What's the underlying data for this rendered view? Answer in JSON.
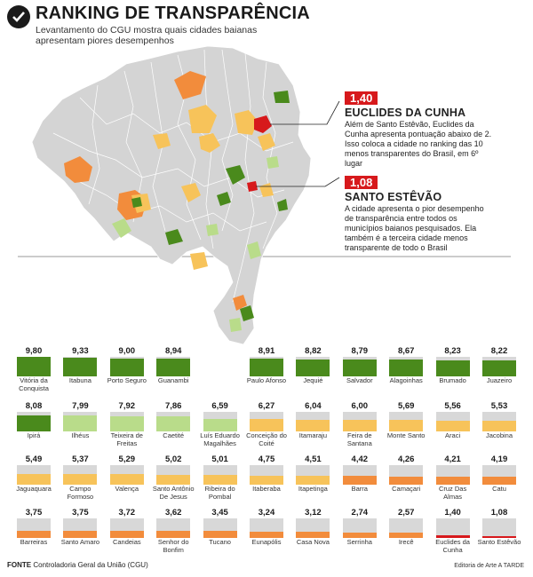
{
  "header": {
    "icon": "checkmark-icon",
    "title": "RANKING DE TRANSPARÊNCIA",
    "subtitle": "Levantamento do CGU mostra quais cidades baianas apresentam piores desempenhos"
  },
  "map": {
    "region": "Bahia",
    "callouts": [
      {
        "value": "1,40",
        "city": "EUCLIDES DA CUNHA",
        "text": "Além de Santo Estêvão, Euclides da Cunha apresenta pontuação abaixo de 2. Isso coloca a cidade no ranking das 10 menos transparentes do Brasil, em 6º lugar"
      },
      {
        "value": "1,08",
        "city": "SANTO ESTÊVÃO",
        "text": "A cidade apresenta o pior desempenho de transparência entre todos os municípios baianos pesquisados. Ela também é a terceira cidade menos transparente de todo o Brasil"
      }
    ]
  },
  "ranking": [
    {
      "value": "9,80",
      "name": "Vitória da Conquista",
      "score": 9.8
    },
    {
      "value": "9,33",
      "name": "Itabuna",
      "score": 9.33
    },
    {
      "value": "9,00",
      "name": "Porto Seguro",
      "score": 9.0
    },
    {
      "value": "8,94",
      "name": "Guanambi",
      "score": 8.94
    },
    {
      "value": "8,91",
      "name": "Paulo Afonso",
      "score": 8.91
    },
    {
      "value": "8,82",
      "name": "Jequié",
      "score": 8.82
    },
    {
      "value": "8,79",
      "name": "Salvador",
      "score": 8.79
    },
    {
      "value": "8,67",
      "name": "Alagoinhas",
      "score": 8.67
    },
    {
      "value": "8,23",
      "name": "Brumado",
      "score": 8.23
    },
    {
      "value": "8,22",
      "name": "Juazeiro",
      "score": 8.22
    },
    {
      "value": "8,08",
      "name": "Ipirá",
      "score": 8.08
    },
    {
      "value": "7,99",
      "name": "Ilhéus",
      "score": 7.99
    },
    {
      "value": "7,92",
      "name": "Teixeira de Freitas",
      "score": 7.92
    },
    {
      "value": "7,86",
      "name": "Caetité",
      "score": 7.86
    },
    {
      "value": "6,59",
      "name": "Luís Eduardo Magalhães",
      "score": 6.59
    },
    {
      "value": "6,27",
      "name": "Conceição do Coité",
      "score": 6.27
    },
    {
      "value": "6,04",
      "name": "Itamaraju",
      "score": 6.04
    },
    {
      "value": "6,00",
      "name": "Feira de Santana",
      "score": 6.0
    },
    {
      "value": "5,69",
      "name": "Monte Santo",
      "score": 5.69
    },
    {
      "value": "5,56",
      "name": "Araci",
      "score": 5.56
    },
    {
      "value": "5,53",
      "name": "Jacobina",
      "score": 5.53
    },
    {
      "value": "5,49",
      "name": "Jaguaquara",
      "score": 5.49
    },
    {
      "value": "5,37",
      "name": "Campo Formoso",
      "score": 5.37
    },
    {
      "value": "5,29",
      "name": "Valença",
      "score": 5.29
    },
    {
      "value": "5,02",
      "name": "Santo Antônio De Jesus",
      "score": 5.02
    },
    {
      "value": "5,01",
      "name": "Ribeira do Pombal",
      "score": 5.01
    },
    {
      "value": "4,75",
      "name": "Itaberaba",
      "score": 4.75
    },
    {
      "value": "4,51",
      "name": "Itapetinga",
      "score": 4.51
    },
    {
      "value": "4,42",
      "name": "Barra",
      "score": 4.42
    },
    {
      "value": "4,26",
      "name": "Camaçari",
      "score": 4.26
    },
    {
      "value": "4,21",
      "name": "Cruz Das Almas",
      "score": 4.21
    },
    {
      "value": "4,19",
      "name": "Catu",
      "score": 4.19
    },
    {
      "value": "3,75",
      "name": "Barreiras",
      "score": 3.75
    },
    {
      "value": "3,75",
      "name": "Santo Amaro",
      "score": 3.75
    },
    {
      "value": "3,72",
      "name": "Candeias",
      "score": 3.72
    },
    {
      "value": "3,62",
      "name": "Senhor do Bonfim",
      "score": 3.62
    },
    {
      "value": "3,45",
      "name": "Tucano",
      "score": 3.45
    },
    {
      "value": "3,24",
      "name": "Eunapólis",
      "score": 3.24
    },
    {
      "value": "3,12",
      "name": "Casa Nova",
      "score": 3.12
    },
    {
      "value": "2,74",
      "name": "Serrinha",
      "score": 2.74
    },
    {
      "value": "2,57",
      "name": "Irecê",
      "score": 2.57
    },
    {
      "value": "1,40",
      "name": "Euclides da Cunha",
      "score": 1.4
    },
    {
      "value": "1,08",
      "name": "Santo Estêvão",
      "score": 1.08
    }
  ],
  "colors": {
    "dark_green": "#4a8a1c",
    "light_green": "#b9dc8a",
    "yellow": "#f7c35a",
    "orange": "#f28c3c",
    "red": "#d7191c",
    "map_base": "#d4d4d4"
  },
  "footer": {
    "source_label": "FONTE",
    "source": "Controladoria Geral da União (CGU)",
    "credit": "Editoria de Arte A TARDE"
  }
}
